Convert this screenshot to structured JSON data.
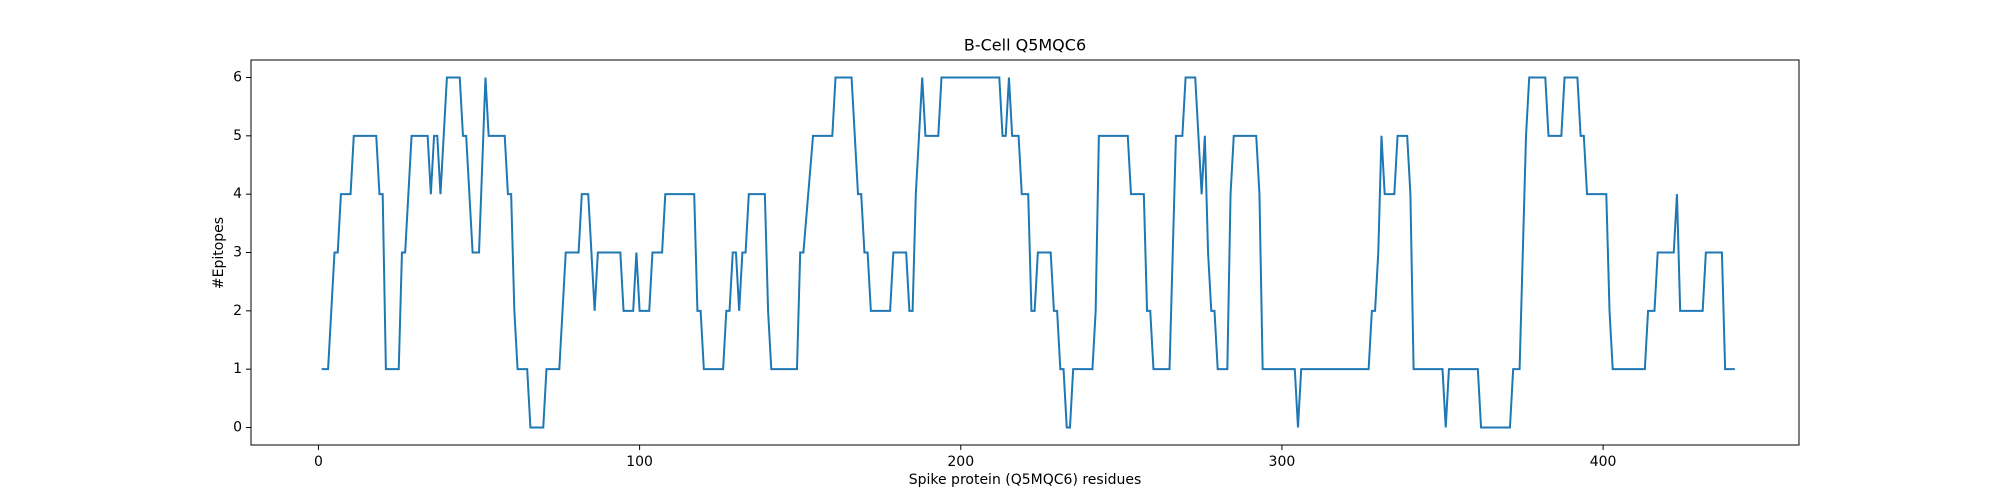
{
  "chart_data": {
    "type": "line",
    "title": "B-Cell Q5MQC6",
    "x_label": "Spike protein (Q5MQC6) residues",
    "y_label": "#Epitopes",
    "x": [
      1,
      3,
      5,
      6,
      7,
      10,
      11,
      18,
      19,
      20,
      21,
      25,
      26,
      27,
      29,
      34,
      35,
      36,
      37,
      38,
      39,
      40,
      44,
      45,
      46,
      47,
      48,
      50,
      52,
      53,
      58,
      59,
      60,
      61,
      62,
      65,
      66,
      70,
      71,
      75,
      77,
      81,
      82,
      84,
      85,
      86,
      87,
      94,
      95,
      98,
      99,
      100,
      103,
      104,
      107,
      108,
      117,
      118,
      119,
      120,
      126,
      127,
      128,
      129,
      130,
      131,
      132,
      133,
      134,
      139,
      140,
      141,
      149,
      150,
      151,
      154,
      160,
      161,
      166,
      168,
      169,
      170,
      171,
      172,
      178,
      179,
      183,
      184,
      185,
      186,
      187,
      188,
      189,
      193,
      194,
      212,
      213,
      214,
      215,
      216,
      218,
      219,
      221,
      222,
      223,
      224,
      228,
      229,
      230,
      231,
      232,
      233,
      234,
      235,
      241,
      242,
      243,
      252,
      253,
      257,
      258,
      259,
      260,
      265,
      266,
      267,
      269,
      270,
      273,
      275,
      276,
      277,
      278,
      279,
      280,
      283,
      284,
      285,
      292,
      293,
      294,
      304,
      305,
      306,
      327,
      328,
      329,
      330,
      331,
      332,
      335,
      336,
      339,
      340,
      341,
      350,
      351,
      352,
      361,
      362,
      371,
      372,
      374,
      376,
      377,
      382,
      383,
      387,
      388,
      392,
      393,
      394,
      395,
      401,
      402,
      403,
      413,
      414,
      416,
      417,
      422,
      423,
      424,
      431,
      432,
      437,
      438,
      441
    ],
    "series": [
      {
        "name": "Q5MQC6",
        "color": "#1f77b4",
        "values": [
          1,
          1,
          3,
          3,
          4,
          4,
          5,
          5,
          4,
          4,
          1,
          1,
          3,
          3,
          5,
          5,
          4,
          5,
          5,
          4,
          5,
          6,
          6,
          5,
          5,
          4,
          3,
          3,
          6,
          5,
          5,
          4,
          4,
          2,
          1,
          1,
          0,
          0,
          1,
          1,
          3,
          3,
          4,
          4,
          3,
          2,
          3,
          3,
          2,
          2,
          3,
          2,
          2,
          3,
          3,
          4,
          4,
          2,
          2,
          1,
          1,
          2,
          2,
          3,
          3,
          2,
          3,
          3,
          4,
          4,
          2,
          1,
          1,
          3,
          3,
          5,
          5,
          6,
          6,
          4,
          4,
          3,
          3,
          2,
          2,
          3,
          3,
          2,
          2,
          4,
          5,
          6,
          5,
          5,
          6,
          6,
          5,
          5,
          6,
          5,
          5,
          4,
          4,
          2,
          2,
          3,
          3,
          2,
          2,
          1,
          1,
          0,
          0,
          1,
          1,
          2,
          5,
          5,
          4,
          4,
          2,
          2,
          1,
          1,
          3,
          5,
          5,
          6,
          6,
          4,
          5,
          3,
          2,
          2,
          1,
          1,
          4,
          5,
          5,
          4,
          1,
          1,
          0,
          1,
          1,
          2,
          2,
          3,
          5,
          4,
          4,
          5,
          5,
          4,
          1,
          1,
          0,
          1,
          1,
          0,
          0,
          1,
          1,
          5,
          6,
          6,
          5,
          5,
          6,
          6,
          5,
          5,
          4,
          4,
          2,
          1,
          1,
          2,
          2,
          3,
          3,
          4,
          2,
          2,
          3,
          3,
          1,
          1
        ]
      }
    ],
    "xlim": [
      -21,
      461
    ],
    "ylim": [
      -0.3,
      6.3
    ],
    "xticks": [
      0,
      100,
      200,
      300,
      400
    ],
    "yticks": [
      0,
      1,
      2,
      3,
      4,
      5,
      6
    ]
  }
}
